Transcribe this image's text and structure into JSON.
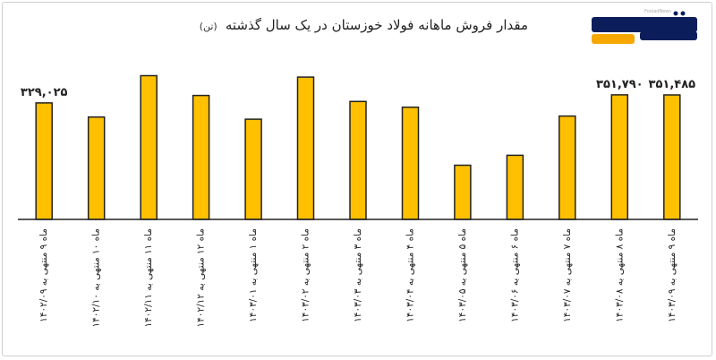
{
  "chart_data": {
    "type": "bar",
    "title": "مقدار فروش ماهانه فولاد خوزستان در یک سال گذشته",
    "subtitle": "(تن)",
    "xlabel": "",
    "ylabel": "",
    "ylim": [
      0,
      430000
    ],
    "grid": false,
    "legend": "none",
    "categories": [
      "ماه ۹ منتهی به ۱۴۰۲/۰۹",
      "ماه ۱۰ منتهی به ۱۴۰۲/۱۰",
      "ماه ۱۱ منتهی به ۱۴۰۲/۱۱",
      "ماه ۱۲ منتهی به ۱۴۰۲/۱۲",
      "ماه ۱ منتهی به ۱۴۰۳/۰۱",
      "ماه ۲ منتهی به ۱۴۰۳/۰۲",
      "ماه ۳ منتهی به ۱۴۰۳/۰۳",
      "ماه ۴ منتهی به ۱۴۰۳/۰۴",
      "ماه ۵ منتهی به ۱۴۰۳/۰۵",
      "ماه ۶ منتهی به ۱۴۰۳/۰۶",
      "ماه ۷ منتهی به ۱۴۰۳/۰۷",
      "ماه ۸ منتهی به ۱۴۰۳/۰۸",
      "ماه ۹ منتهی به ۱۴۰۳/۰۹"
    ],
    "values": [
      329025,
      289000,
      406000,
      350000,
      283000,
      402000,
      333000,
      317000,
      153000,
      181000,
      292000,
      351790,
      351485
    ],
    "data_labels": [
      "۳۲۹,۰۲۵",
      "",
      "",
      "",
      "",
      "",
      "",
      "",
      "",
      "",
      "",
      "۳۵۱,۷۹۰",
      "۳۵۱,۴۸۵"
    ]
  },
  "colors": {
    "bar_fill": "#FFC000",
    "bar_stroke": "#222222",
    "axis": "#222222",
    "text": "#222222",
    "logo_blue": "#0b1e5b",
    "logo_orange": "#f6a800"
  },
  "logo": {
    "name": "فولاد نیوز",
    "caption": "FooladNews"
  }
}
